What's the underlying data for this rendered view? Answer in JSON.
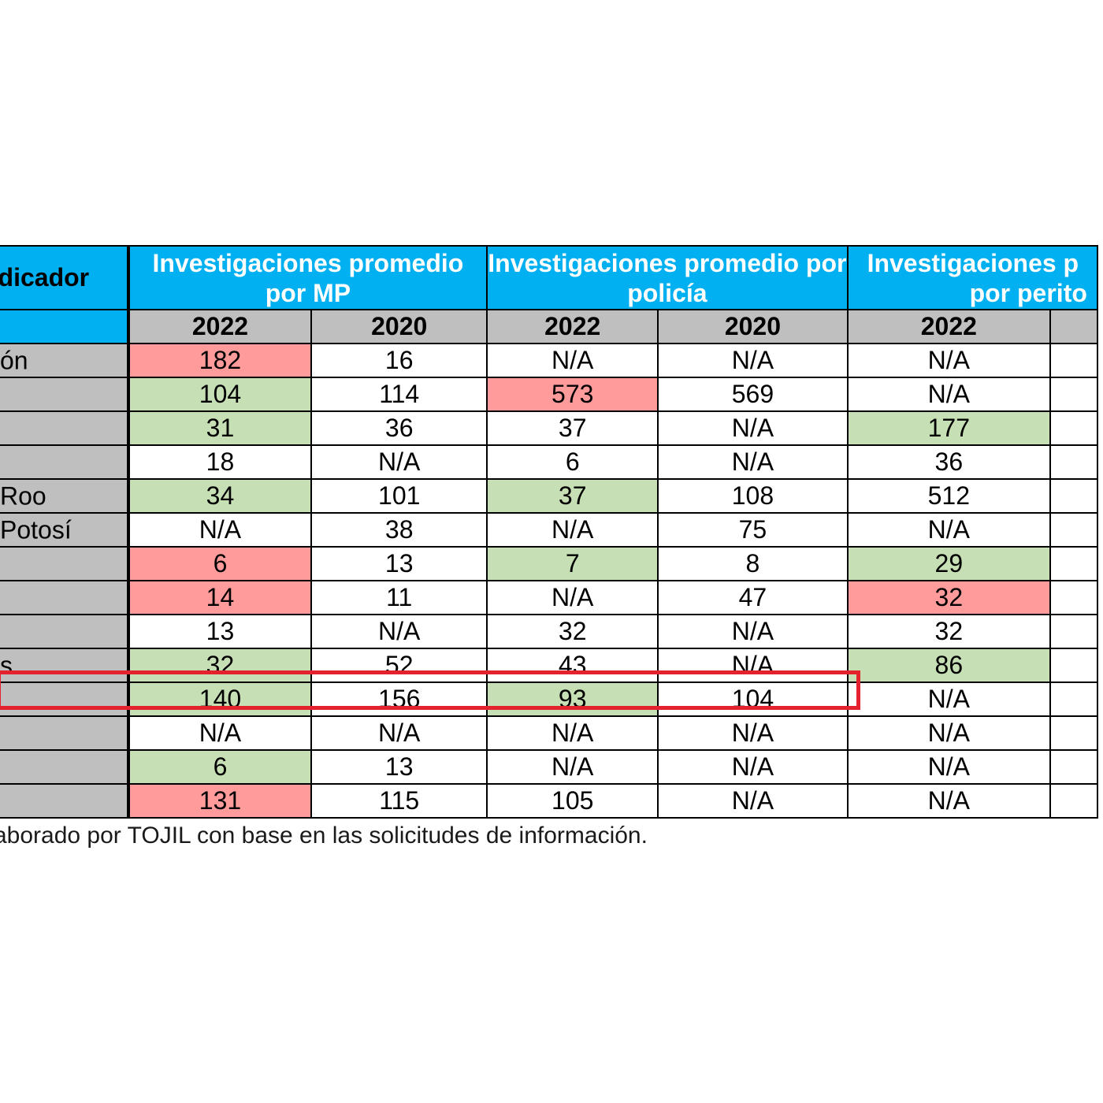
{
  "headers": {
    "indicador": "ndicador",
    "group1": "Investigaciones promedio por MP",
    "group2": "Investigaciones promedio por policía",
    "group3": "Investigaciones p por perito",
    "group3_line1": "Investigaciones p",
    "group3_line2": "por perito",
    "years": [
      "2022",
      "2020",
      "2022",
      "2020",
      "2022"
    ]
  },
  "rows": [
    {
      "label": "ón",
      "cells": [
        {
          "v": "182",
          "c": "red"
        },
        {
          "v": "16",
          "c": "white"
        },
        {
          "v": "N/A",
          "c": "white"
        },
        {
          "v": "N/A",
          "c": "white"
        },
        {
          "v": "N/A",
          "c": "white"
        }
      ]
    },
    {
      "label": "",
      "cells": [
        {
          "v": "104",
          "c": "green"
        },
        {
          "v": "114",
          "c": "white"
        },
        {
          "v": "573",
          "c": "red"
        },
        {
          "v": "569",
          "c": "white"
        },
        {
          "v": "N/A",
          "c": "white"
        }
      ]
    },
    {
      "label": "",
      "cells": [
        {
          "v": "31",
          "c": "green"
        },
        {
          "v": "36",
          "c": "white"
        },
        {
          "v": "37",
          "c": "white"
        },
        {
          "v": "N/A",
          "c": "white"
        },
        {
          "v": "177",
          "c": "green"
        }
      ]
    },
    {
      "label": "",
      "cells": [
        {
          "v": "18",
          "c": "white"
        },
        {
          "v": "N/A",
          "c": "white"
        },
        {
          "v": "6",
          "c": "white"
        },
        {
          "v": "N/A",
          "c": "white"
        },
        {
          "v": "36",
          "c": "white"
        }
      ]
    },
    {
      "label": "Roo",
      "cells": [
        {
          "v": "34",
          "c": "green"
        },
        {
          "v": "101",
          "c": "white"
        },
        {
          "v": "37",
          "c": "green"
        },
        {
          "v": "108",
          "c": "white"
        },
        {
          "v": "512",
          "c": "white"
        }
      ]
    },
    {
      "label": "Potosí",
      "cells": [
        {
          "v": "N/A",
          "c": "white"
        },
        {
          "v": "38",
          "c": "white"
        },
        {
          "v": "N/A",
          "c": "white"
        },
        {
          "v": "75",
          "c": "white"
        },
        {
          "v": "N/A",
          "c": "white"
        }
      ]
    },
    {
      "label": "",
      "cells": [
        {
          "v": "6",
          "c": "red"
        },
        {
          "v": "13",
          "c": "white"
        },
        {
          "v": "7",
          "c": "green"
        },
        {
          "v": "8",
          "c": "white"
        },
        {
          "v": "29",
          "c": "green"
        }
      ]
    },
    {
      "label": "",
      "cells": [
        {
          "v": "14",
          "c": "red"
        },
        {
          "v": "11",
          "c": "white"
        },
        {
          "v": "N/A",
          "c": "white"
        },
        {
          "v": "47",
          "c": "white"
        },
        {
          "v": "32",
          "c": "red"
        }
      ]
    },
    {
      "label": "",
      "cells": [
        {
          "v": "13",
          "c": "white"
        },
        {
          "v": "N/A",
          "c": "white"
        },
        {
          "v": "32",
          "c": "white"
        },
        {
          "v": "N/A",
          "c": "white"
        },
        {
          "v": "32",
          "c": "white"
        }
      ]
    },
    {
      "label": "s",
      "cells": [
        {
          "v": "32",
          "c": "green"
        },
        {
          "v": "52",
          "c": "white"
        },
        {
          "v": "43",
          "c": "white"
        },
        {
          "v": "N/A",
          "c": "white"
        },
        {
          "v": "86",
          "c": "green"
        }
      ]
    },
    {
      "label": "",
      "cells": [
        {
          "v": "140",
          "c": "green"
        },
        {
          "v": "156",
          "c": "white"
        },
        {
          "v": "93",
          "c": "green"
        },
        {
          "v": "104",
          "c": "white"
        },
        {
          "v": "N/A",
          "c": "white"
        }
      ]
    },
    {
      "label": "",
      "cells": [
        {
          "v": "N/A",
          "c": "white"
        },
        {
          "v": "N/A",
          "c": "white"
        },
        {
          "v": "N/A",
          "c": "white"
        },
        {
          "v": "N/A",
          "c": "white"
        },
        {
          "v": "N/A",
          "c": "white"
        }
      ]
    },
    {
      "label": "",
      "cells": [
        {
          "v": "6",
          "c": "green"
        },
        {
          "v": "13",
          "c": "white"
        },
        {
          "v": "N/A",
          "c": "white"
        },
        {
          "v": "N/A",
          "c": "white"
        },
        {
          "v": "N/A",
          "c": "white"
        }
      ]
    },
    {
      "label": "",
      "cells": [
        {
          "v": "131",
          "c": "red"
        },
        {
          "v": "115",
          "c": "white"
        },
        {
          "v": "105",
          "c": "white"
        },
        {
          "v": "N/A",
          "c": "white"
        },
        {
          "v": "N/A",
          "c": "white"
        }
      ]
    }
  ],
  "highlight_row_index": 10,
  "caption": "aborado por TOJIL con base en las solicitudes de información.",
  "colors": {
    "header_blue": "#00b0f0",
    "header_gray": "#bfbfbf",
    "cell_red": "#ff9b9b",
    "cell_green": "#c6dfb4",
    "highlight_border": "#e3222d"
  }
}
